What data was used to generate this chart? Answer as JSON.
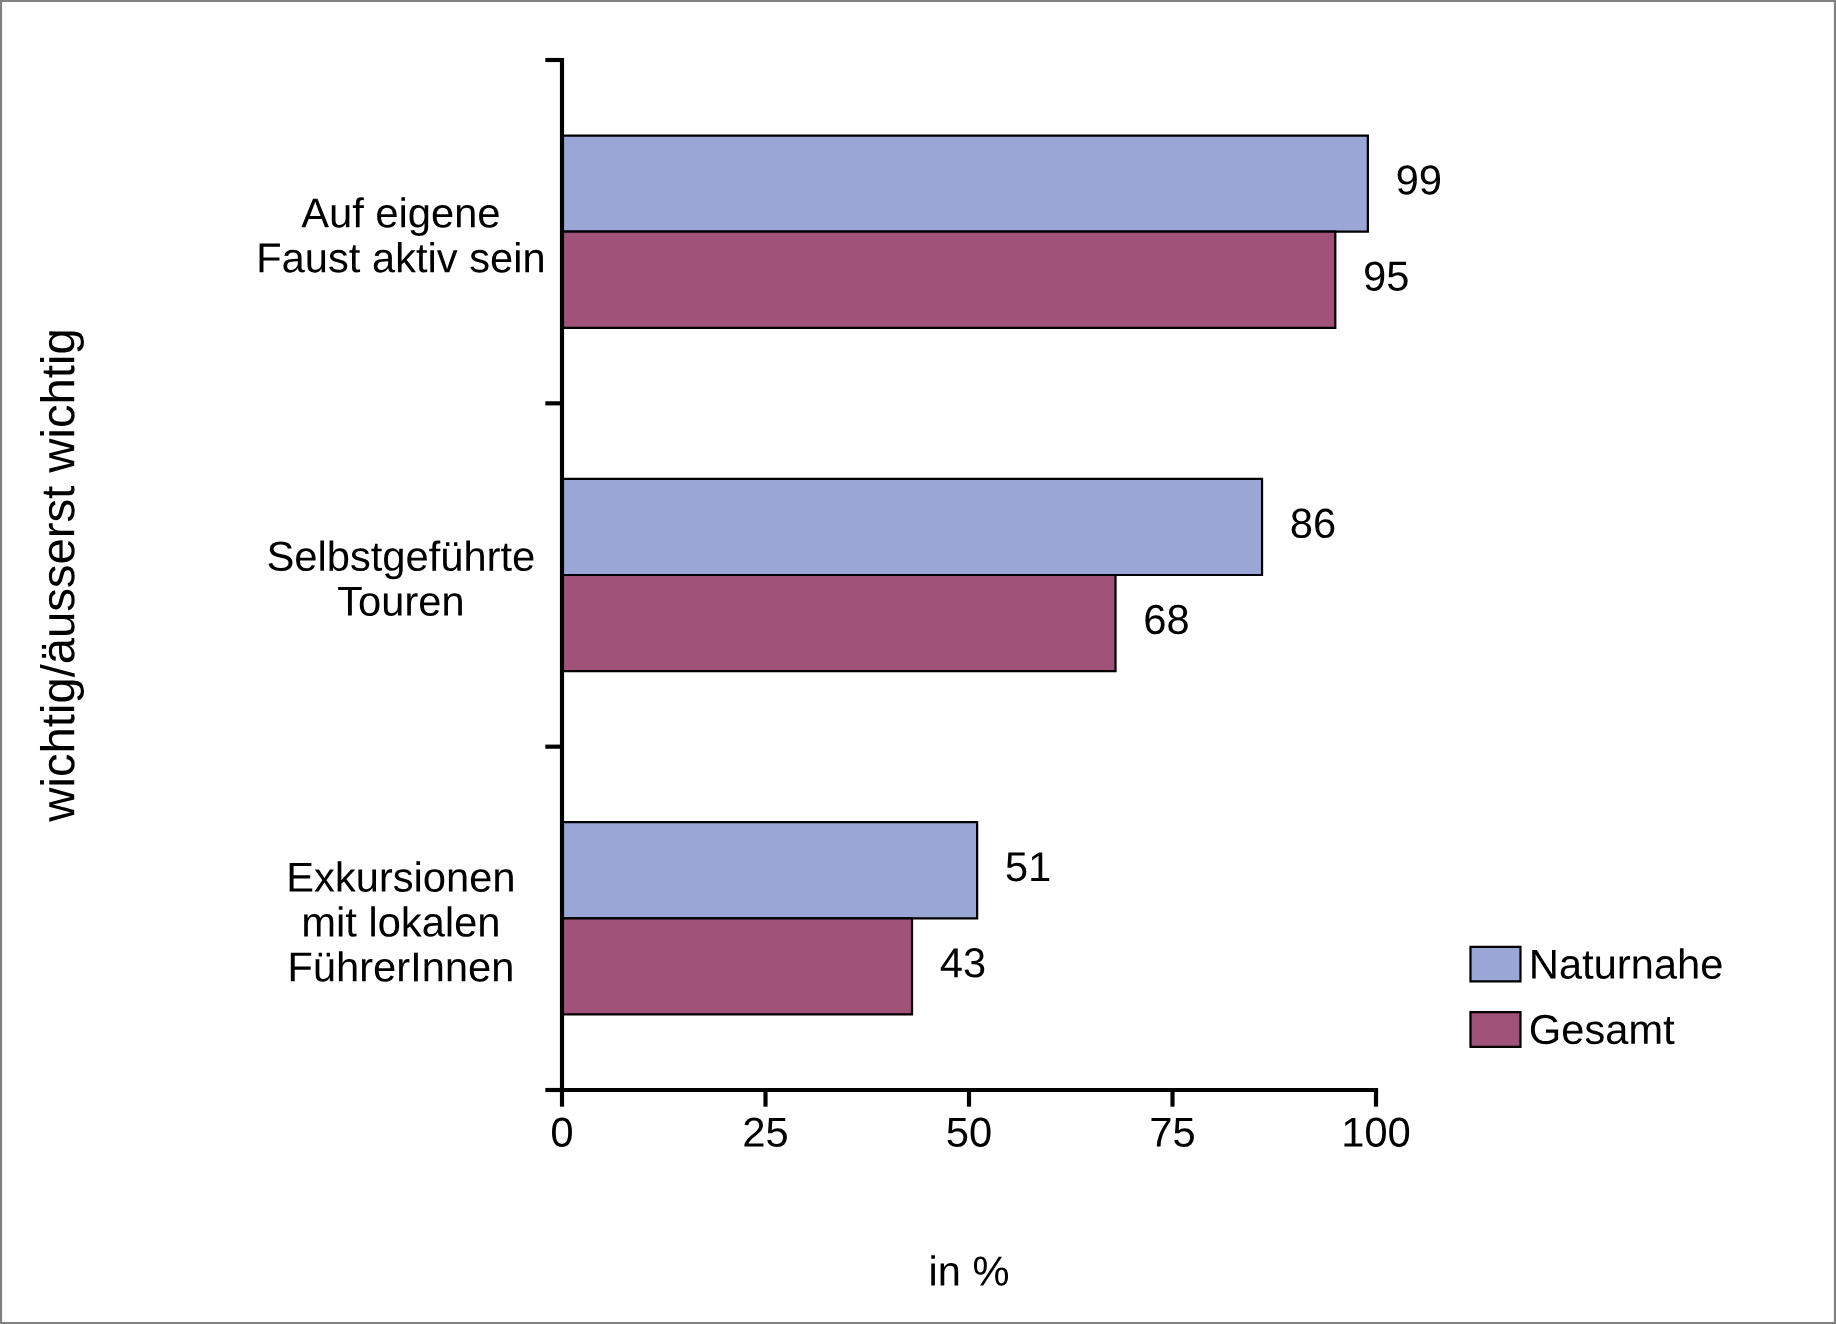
{
  "chart_data": {
    "type": "bar",
    "orientation": "horizontal",
    "ylabel": "wichtig/äusserst wichtig",
    "xlabel": "in %",
    "categories": [
      "Auf eigene\nFaust aktiv sein",
      "Selbstgeführte\nTouren",
      "Exkursionen\nmit lokalen\nFührerInnen"
    ],
    "series": [
      {
        "name": "Naturnahe",
        "color": "#9aa6d6",
        "values": [
          99,
          86,
          51
        ]
      },
      {
        "name": "Gesamt",
        "color": "#a05278",
        "values": [
          95,
          68,
          43
        ]
      }
    ],
    "xlim": [
      0,
      100
    ],
    "xticks": [
      0,
      25,
      50,
      75,
      100
    ],
    "data_labels": true,
    "legend": "bottom right",
    "grid": false
  }
}
